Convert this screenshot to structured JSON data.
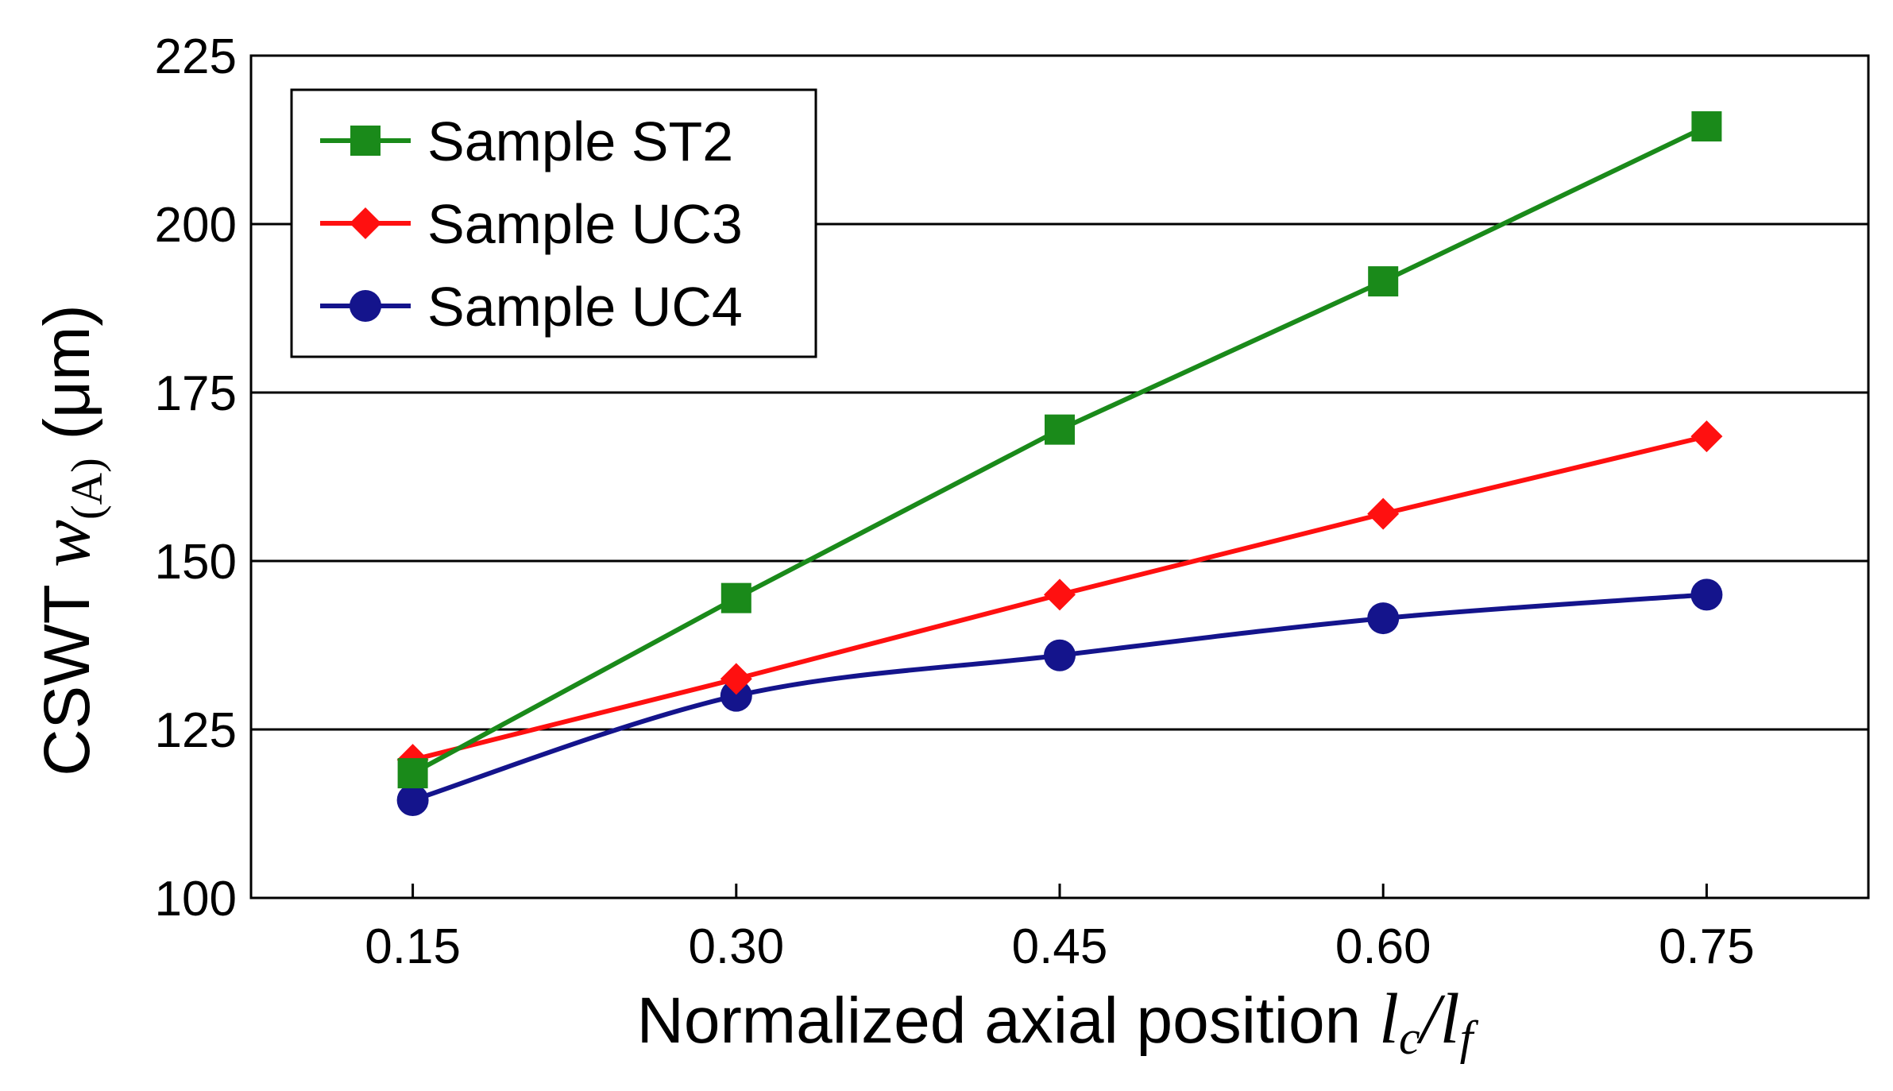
{
  "chart_data": {
    "type": "line",
    "title": "",
    "x": [
      0.15,
      0.3,
      0.45,
      0.6,
      0.75
    ],
    "x_tick_labels": [
      "0.15",
      "0.30",
      "0.45",
      "0.60",
      "0.75"
    ],
    "xlim": [
      0.075,
      0.825
    ],
    "ylim": [
      100,
      225
    ],
    "y_ticks": [
      100,
      125,
      150,
      175,
      200,
      225
    ],
    "y_tick_labels": [
      "100",
      "125",
      "150",
      "175",
      "200",
      "225"
    ],
    "grid_y_values": [
      125,
      150,
      175,
      200
    ],
    "xlabel": {
      "text": "Normalized axial position ",
      "var1": "l",
      "sub1": "c",
      "slash": "/",
      "var2": "l",
      "sub2": "f"
    },
    "ylabel": {
      "text": "CSWT ",
      "var": "w",
      "sub": "(A)",
      "unit": " (μm)"
    },
    "legend_position": "top-left",
    "series": [
      {
        "name": "Sample ST2",
        "color": "#1a8a1a",
        "marker": "square",
        "curve": "linear",
        "values": [
          118.5,
          144.5,
          169.5,
          191.5,
          214.5
        ]
      },
      {
        "name": "Sample UC3",
        "color": "#ff1010",
        "marker": "diamond",
        "curve": "linear",
        "values": [
          120.5,
          132.5,
          145,
          157,
          168.5
        ]
      },
      {
        "name": "Sample UC4",
        "color": "#14148c",
        "marker": "circle",
        "curve": "smooth",
        "values": [
          114.5,
          130,
          136,
          141.5,
          145
        ]
      }
    ]
  }
}
